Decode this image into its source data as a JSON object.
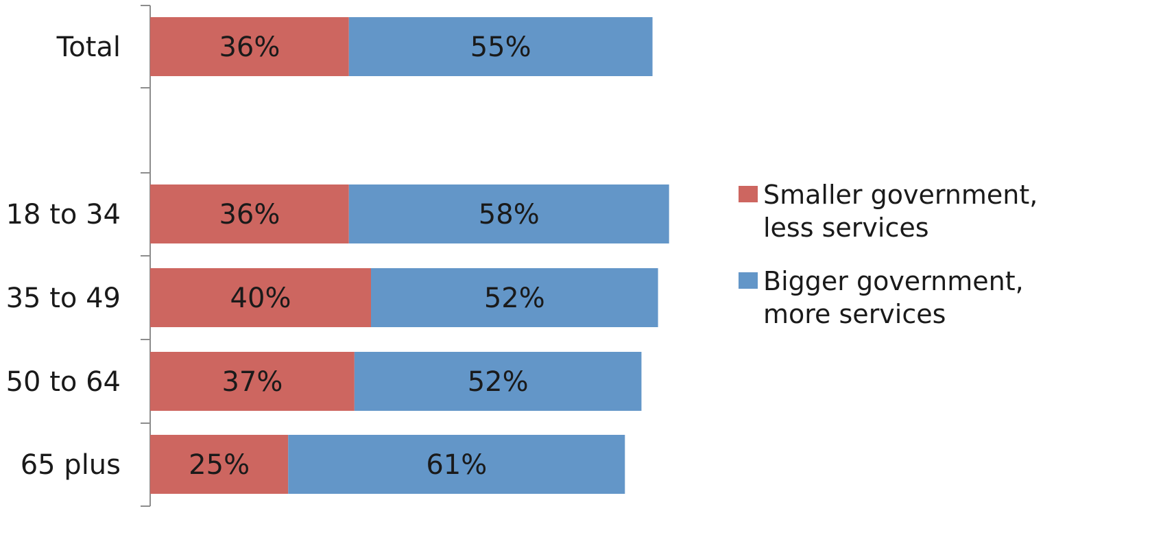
{
  "chart_data": {
    "type": "bar",
    "orientation": "horizontal",
    "stacked": true,
    "categories": [
      "Total",
      "",
      "18 to 34",
      "35 to 49",
      "50 to 64",
      "65 plus"
    ],
    "series": [
      {
        "name": "Smaller government, less services",
        "color": "#cd6660",
        "values": [
          36,
          null,
          36,
          40,
          37,
          25
        ],
        "labels": [
          "36%",
          "",
          "36%",
          "40%",
          "37%",
          "25%"
        ]
      },
      {
        "name": "Bigger government, more services",
        "color": "#6396c8",
        "values": [
          55,
          null,
          58,
          52,
          52,
          61
        ],
        "labels": [
          "55%",
          "",
          "58%",
          "52%",
          "52%",
          "61%"
        ]
      }
    ],
    "legend": {
      "position": "right",
      "entries": [
        {
          "lines": [
            "Smaller government,",
            "less services"
          ],
          "color": "#cd6660"
        },
        {
          "lines": [
            "Bigger government,",
            "more services"
          ],
          "color": "#6396c8"
        }
      ]
    },
    "xlim": [
      0,
      100
    ],
    "grid": false,
    "axis_color": "#8c8c8c"
  }
}
